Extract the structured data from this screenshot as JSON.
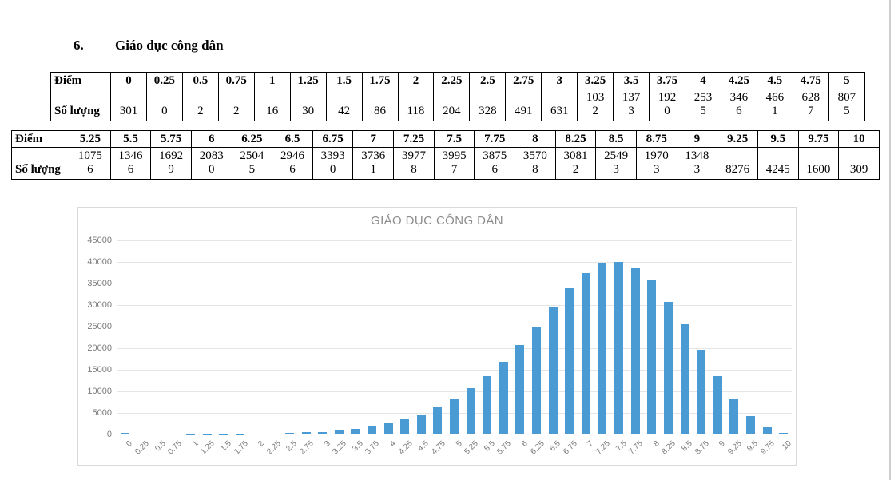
{
  "page": {
    "section_number": "6.",
    "section_title": "Giáo dục công dân"
  },
  "tables": [
    {
      "score_label": "Điểm",
      "count_label": "Số lượng",
      "scores": [
        "0",
        "0.25",
        "0.5",
        "0.75",
        "1",
        "1.25",
        "1.5",
        "1.75",
        "2",
        "2.25",
        "2.5",
        "2.75",
        "3",
        "3.25",
        "3.5",
        "3.75",
        "4",
        "4.25",
        "4.5",
        "4.75",
        "5"
      ],
      "counts_display": [
        "301",
        "0",
        "2",
        "2",
        "16",
        "30",
        "42",
        "86",
        "118",
        "204",
        "328",
        "491",
        "631",
        "103\n2",
        "137\n3",
        "192\n0",
        "253\n5",
        "346\n6",
        "466\n1",
        "628\n7",
        "807\n5"
      ]
    },
    {
      "score_label": "Điểm",
      "count_label": "Số lượng",
      "scores": [
        "5.25",
        "5.5",
        "5.75",
        "6",
        "6.25",
        "6.5",
        "6.75",
        "7",
        "7.25",
        "7.5",
        "7.75",
        "8",
        "8.25",
        "8.5",
        "8.75",
        "9",
        "9.25",
        "9.5",
        "9.75",
        "10"
      ],
      "counts_display": [
        "1075\n6",
        "1346\n6",
        "1692\n9",
        "2083\n0",
        "2504\n5",
        "2946\n6",
        "3393\n0",
        "3736\n1",
        "3977\n8",
        "3995\n7",
        "3875\n6",
        "3570\n8",
        "3081\n2",
        "2549\n3",
        "1970\n3",
        "1348\n3",
        "8276",
        "4245",
        "1600",
        "309"
      ]
    }
  ],
  "chart_data": {
    "type": "bar",
    "title": "GIÁO DỤC CÔNG DÂN",
    "categories": [
      "0",
      "0.25",
      "0.5",
      "0.75",
      "1",
      "1.25",
      "1.5",
      "1.75",
      "2",
      "2.25",
      "2.5",
      "2.75",
      "3",
      "3.25",
      "3.5",
      "3.75",
      "4",
      "4.25",
      "4.5",
      "4.75",
      "5",
      "5.25",
      "5.5",
      "5.75",
      "6",
      "6.25",
      "6.5",
      "6.75",
      "7",
      "7.25",
      "7.5",
      "7.75",
      "8",
      "8.25",
      "8.5",
      "8.75",
      "9",
      "9.25",
      "9.5",
      "9.75",
      "10"
    ],
    "values": [
      301,
      0,
      2,
      2,
      16,
      30,
      42,
      86,
      118,
      204,
      328,
      491,
      631,
      1032,
      1373,
      1920,
      2535,
      3466,
      4661,
      6287,
      8075,
      10756,
      13466,
      16929,
      20830,
      25045,
      29466,
      33930,
      37361,
      39778,
      39957,
      38756,
      35708,
      30812,
      25493,
      19703,
      13483,
      8276,
      4245,
      1600,
      309
    ],
    "xlabel": "",
    "ylabel": "",
    "ylim": [
      0,
      45000
    ],
    "ytick_step": 5000,
    "ytick_labels": [
      "0",
      "5000",
      "10000",
      "15000",
      "20000",
      "25000",
      "30000",
      "35000",
      "40000",
      "45000"
    ],
    "bar_color": "#4a9ad4",
    "grid": true,
    "legend_position": "none"
  }
}
